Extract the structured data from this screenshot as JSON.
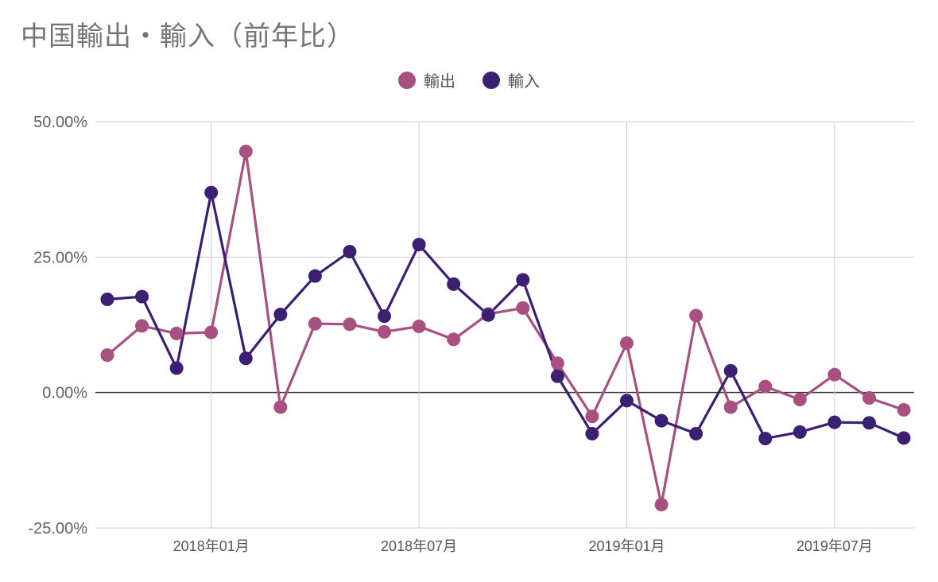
{
  "chart_data": {
    "type": "line",
    "title": "中国輸出・輸入（前年比）",
    "y_range": [
      -25,
      50
    ],
    "y_ticks": [
      50,
      25,
      0,
      -25
    ],
    "y_tick_labels": [
      "50.00%",
      "25.00%",
      "0.00%",
      "-25.00%"
    ],
    "x_ticks": [
      {
        "index": 3,
        "label": "2018年01月"
      },
      {
        "index": 9,
        "label": "2018年07月"
      },
      {
        "index": 15,
        "label": "2019年01月"
      },
      {
        "index": 21,
        "label": "2019年07月"
      }
    ],
    "legend_position": "top-center",
    "grid": true,
    "series": [
      {
        "name": "輸出",
        "color": "#a8507f",
        "values": [
          6.9,
          12.3,
          10.9,
          11.1,
          44.5,
          -2.7,
          12.7,
          12.6,
          11.2,
          12.2,
          9.8,
          14.5,
          15.6,
          5.4,
          -4.4,
          9.1,
          -20.7,
          14.2,
          -2.7,
          1.1,
          -1.3,
          3.3,
          -1.0,
          -3.2
        ]
      },
      {
        "name": "輸入",
        "color": "#3a1f73",
        "values": [
          17.2,
          17.7,
          4.5,
          36.9,
          6.3,
          14.4,
          21.5,
          26.0,
          14.1,
          27.3,
          20.0,
          14.3,
          20.8,
          3.0,
          -7.6,
          -1.5,
          -5.2,
          -7.6,
          4.0,
          -8.5,
          -7.3,
          -5.5,
          -5.6,
          -8.4
        ]
      }
    ]
  }
}
